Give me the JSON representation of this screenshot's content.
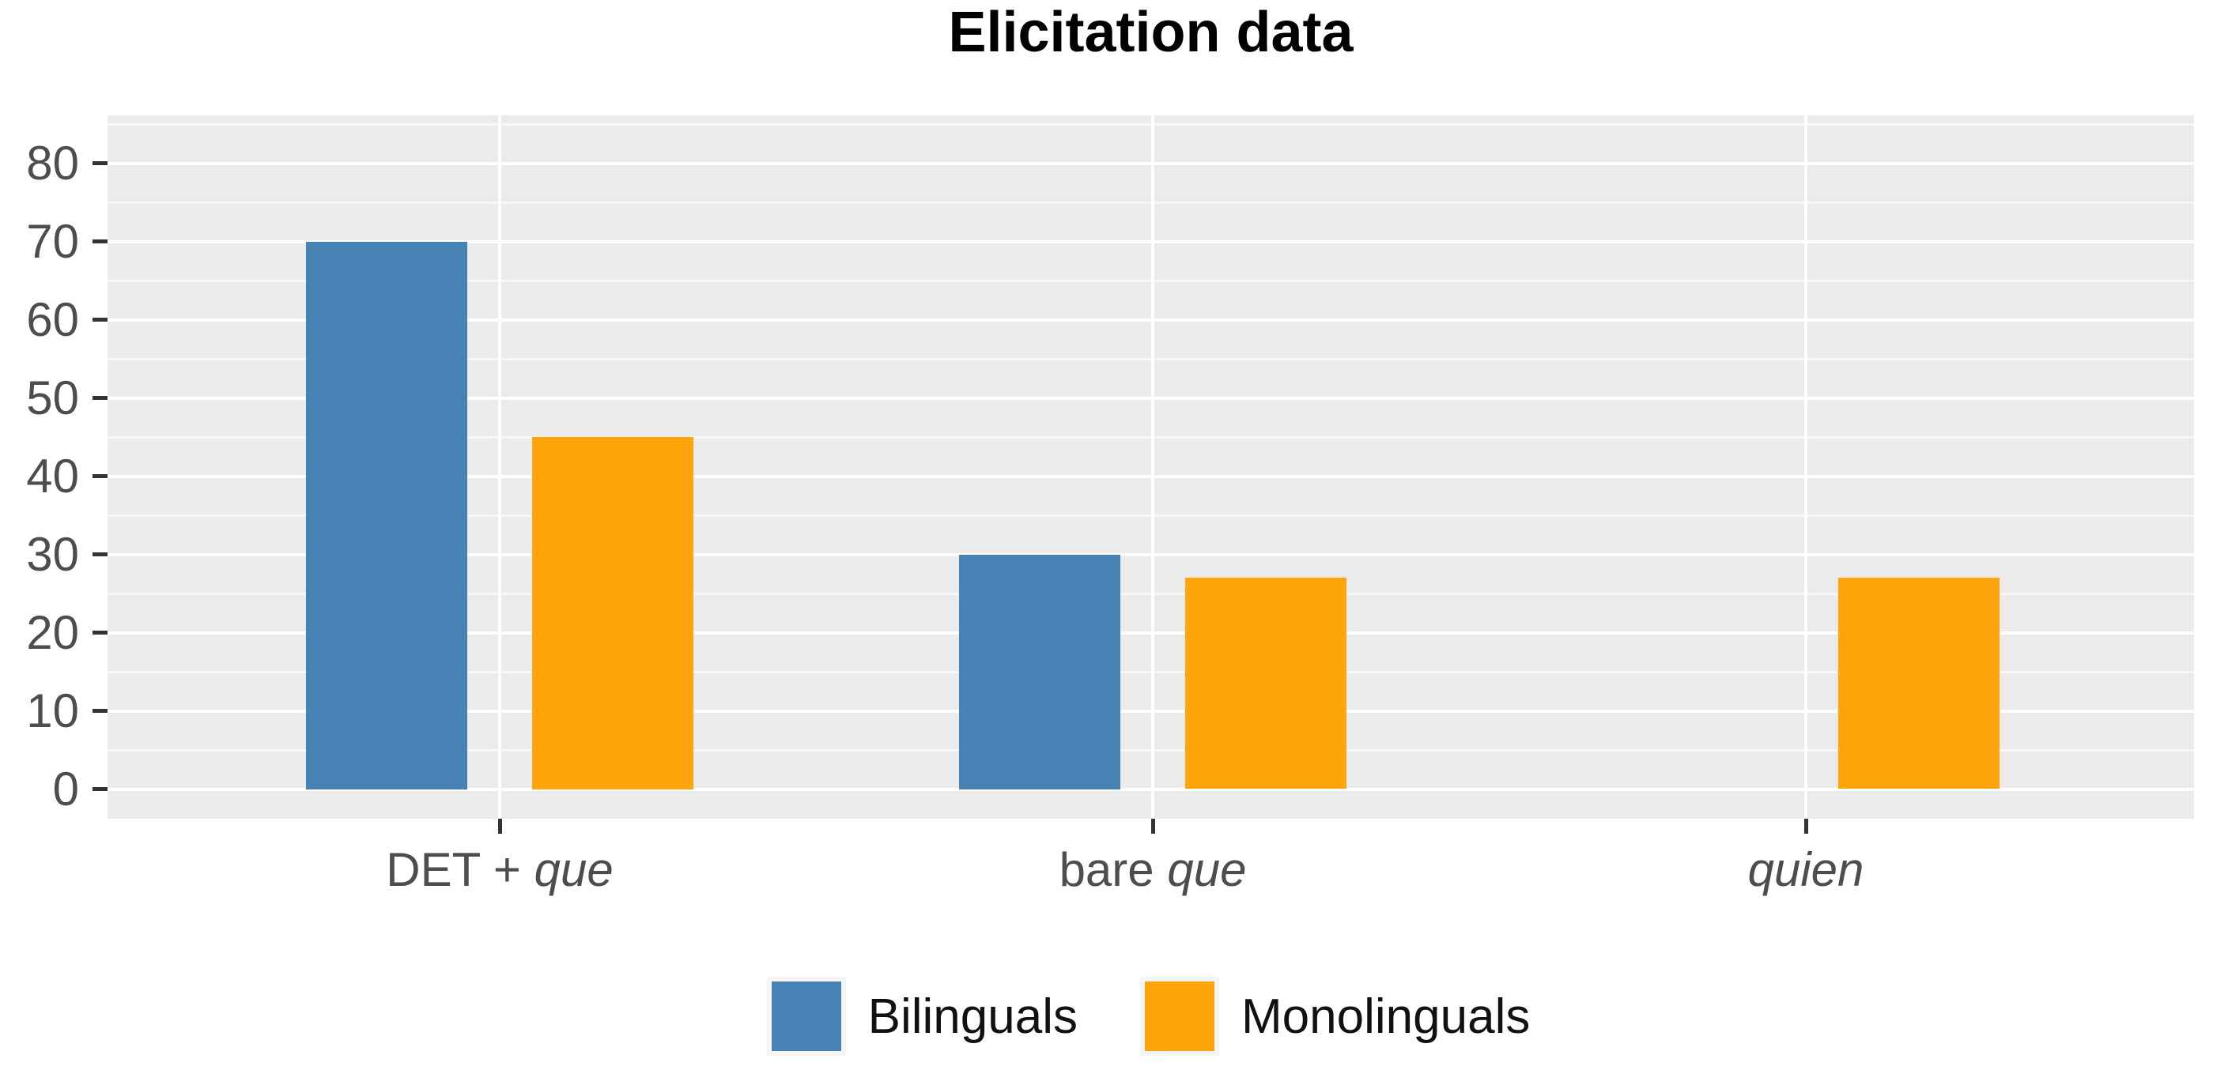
{
  "title": "Elicitation data",
  "chart_data": {
    "type": "bar",
    "title": "Elicitation data",
    "categories": [
      {
        "label": "DET + que",
        "roman": "DET + ",
        "italic": "que"
      },
      {
        "label": "bare que",
        "roman": "bare ",
        "italic": "que"
      },
      {
        "label": "quien",
        "roman": "",
        "italic": "quien"
      }
    ],
    "series": [
      {
        "name": "Bilinguals",
        "color": "#4682B4",
        "values": [
          70,
          30,
          0
        ]
      },
      {
        "name": "Monolinguals",
        "color": "#FFA40A",
        "values": [
          45,
          27,
          27
        ]
      }
    ],
    "xlabel": "",
    "ylabel": "",
    "ylim": [
      0,
      85
    ],
    "yticks": [
      0,
      10,
      20,
      30,
      40,
      50,
      60,
      70,
      80
    ],
    "grid": {
      "panel_bg": "#EBEBEB",
      "major_color": "#FFFFFF",
      "minor_color": "#FFFFFF",
      "minor_every": 5,
      "vertical_major_at_category_centers": true
    },
    "legend_position": "bottom"
  },
  "colors": {
    "axis_text": "#4D4D4D",
    "tick_mark": "#333333",
    "legend_text": "#111111",
    "title_text": "#000000"
  }
}
